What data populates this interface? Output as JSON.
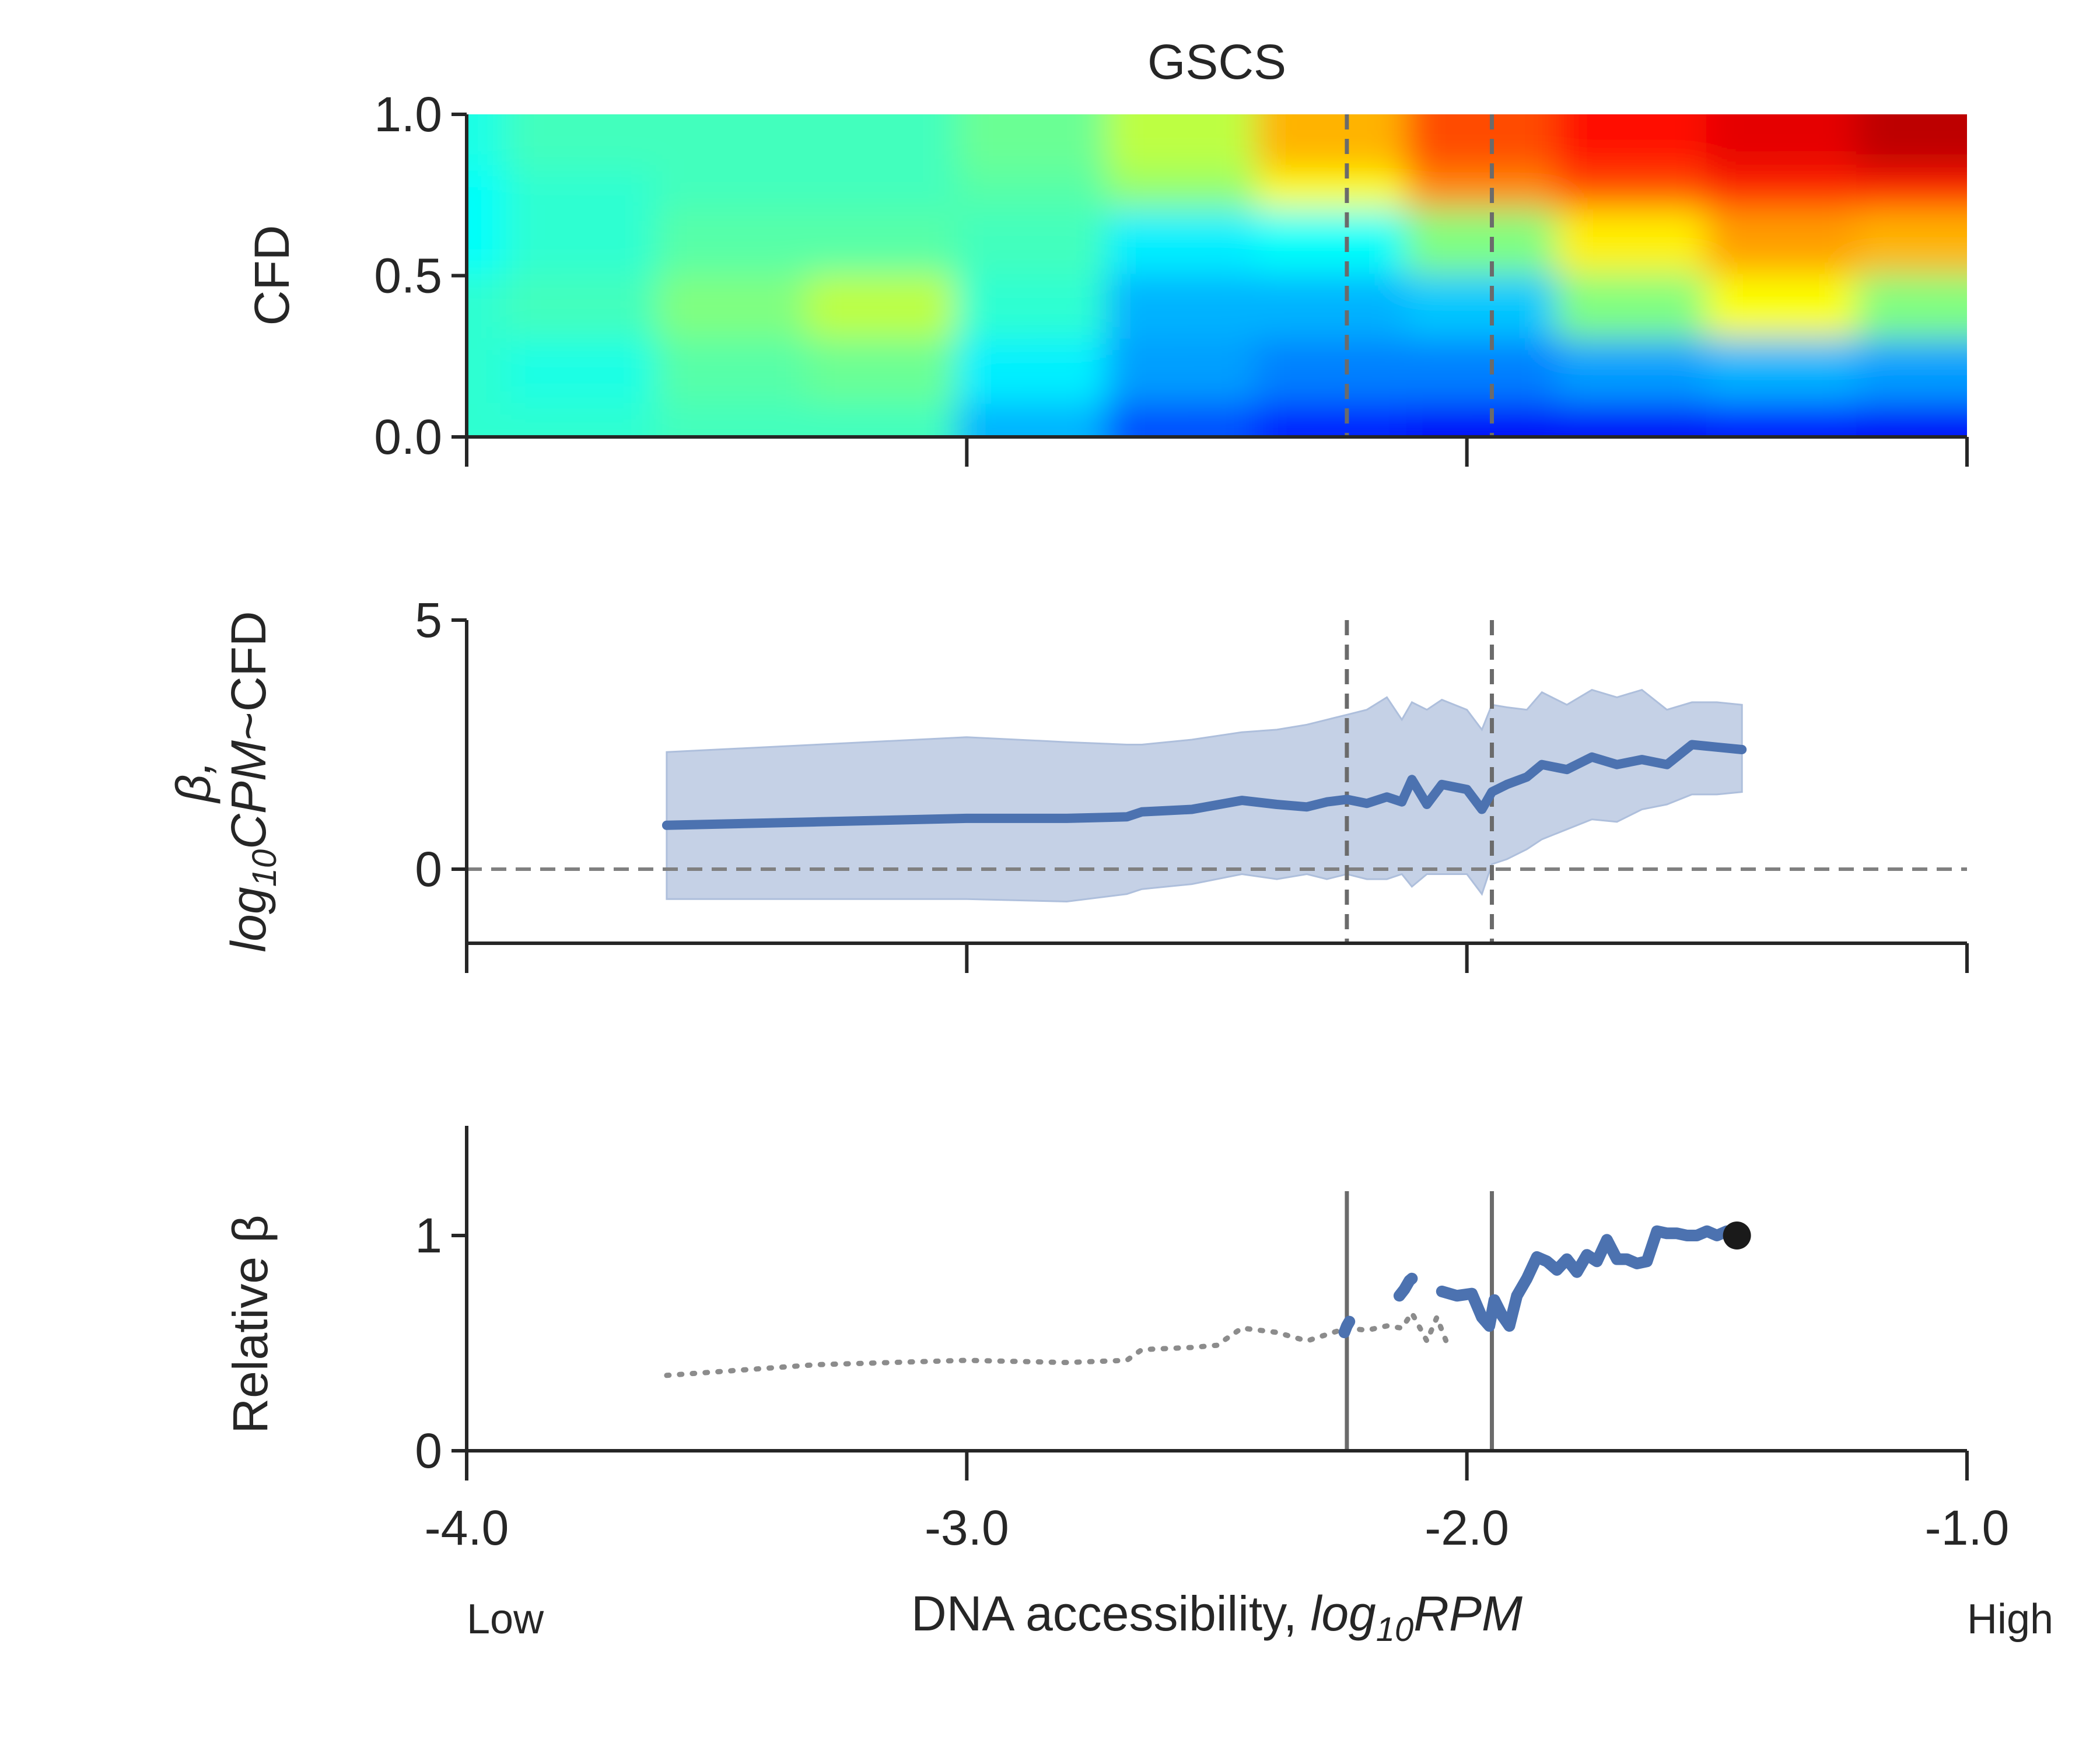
{
  "chart_data": [
    {
      "type": "heatmap",
      "title": "GSCS",
      "ylabel": "CFD",
      "xlim": [
        -4.0,
        -1.0
      ],
      "ylim": [
        0.0,
        1.0
      ],
      "yticks": [
        "0.0",
        "0.5",
        "1.0"
      ],
      "colormap": "jet",
      "vlines": [
        -2.24,
        -1.95
      ],
      "vline_color": "#6b6b6b",
      "vline_style": "dashed",
      "grid": false,
      "note_values": {
        "columns_x": [
          -4.0,
          -3.7,
          -3.4,
          -3.1,
          -2.8,
          -2.5,
          -2.2,
          -1.9,
          -1.6,
          -1.3,
          -1.0
        ],
        "rows_y": [
          0.05,
          0.25,
          0.45,
          0.65,
          0.85,
          0.97
        ],
        "z": [
          [
            0.42,
            0.42,
            0.44,
            0.44,
            0.3,
            0.2,
            0.15,
            0.12,
            0.12,
            0.14,
            0.12
          ],
          [
            0.42,
            0.4,
            0.46,
            0.48,
            0.36,
            0.28,
            0.25,
            0.25,
            0.28,
            0.3,
            0.28
          ],
          [
            0.42,
            0.44,
            0.5,
            0.56,
            0.42,
            0.3,
            0.3,
            0.32,
            0.5,
            0.62,
            0.5
          ],
          [
            0.38,
            0.42,
            0.46,
            0.46,
            0.44,
            0.36,
            0.38,
            0.5,
            0.64,
            0.72,
            0.7
          ],
          [
            0.38,
            0.42,
            0.44,
            0.44,
            0.46,
            0.52,
            0.62,
            0.74,
            0.8,
            0.84,
            0.85
          ],
          [
            0.4,
            0.44,
            0.44,
            0.44,
            0.48,
            0.56,
            0.7,
            0.8,
            0.86,
            0.9,
            0.94
          ]
        ]
      }
    },
    {
      "type": "line",
      "ylabel_line1": "β,",
      "ylabel_line2": "log10CPM~CFD",
      "xlim": [
        -4.0,
        -1.0
      ],
      "ylim": [
        -1.5,
        5
      ],
      "yticks": [
        "0",
        "5"
      ],
      "hline": 0,
      "vlines": [
        -2.24,
        -1.95
      ],
      "series": [
        {
          "color": "#4c72b0",
          "band_color": "#c5d1e6",
          "x": [
            -3.6,
            -3.3,
            -3.0,
            -2.8,
            -2.68,
            -2.65,
            -2.55,
            -2.45,
            -2.38,
            -2.32,
            -2.28,
            -2.24,
            -2.2,
            -2.16,
            -2.13,
            -2.11,
            -2.08,
            -2.05,
            -2.0,
            -1.97,
            -1.95,
            -1.92,
            -1.88,
            -1.85,
            -1.8,
            -1.75,
            -1.7,
            -1.65,
            -1.6,
            -1.55,
            -1.5,
            -1.45
          ],
          "y": [
            0.88,
            0.95,
            1.02,
            1.02,
            1.05,
            1.15,
            1.2,
            1.38,
            1.3,
            1.25,
            1.35,
            1.4,
            1.32,
            1.45,
            1.35,
            1.8,
            1.3,
            1.7,
            1.6,
            1.2,
            1.55,
            1.7,
            1.85,
            2.1,
            2.0,
            2.25,
            2.1,
            2.2,
            2.1,
            2.5,
            2.45,
            2.4
          ],
          "lower": [
            -0.6,
            -0.6,
            -0.6,
            -0.65,
            -0.5,
            -0.4,
            -0.3,
            -0.1,
            -0.2,
            -0.1,
            -0.2,
            -0.1,
            -0.2,
            -0.2,
            -0.1,
            -0.35,
            -0.1,
            -0.1,
            -0.1,
            -0.5,
            0.1,
            0.2,
            0.4,
            0.6,
            0.8,
            1.0,
            0.95,
            1.2,
            1.3,
            1.5,
            1.5,
            1.55
          ],
          "upper": [
            2.35,
            2.5,
            2.65,
            2.55,
            2.5,
            2.5,
            2.6,
            2.75,
            2.8,
            2.9,
            3.0,
            3.1,
            3.2,
            3.45,
            3.0,
            3.35,
            3.2,
            3.4,
            3.2,
            2.8,
            3.3,
            3.25,
            3.2,
            3.55,
            3.3,
            3.6,
            3.45,
            3.6,
            3.2,
            3.35,
            3.35,
            3.3
          ]
        }
      ]
    },
    {
      "type": "line",
      "ylabel": "Relative β",
      "xlabel_text": "DNA accessibility, ",
      "xlabel_math": "log10RPM",
      "xlim": [
        -4.0,
        -1.0
      ],
      "ylim": [
        0,
        1.5
      ],
      "yticks": [
        "0",
        "1"
      ],
      "xticks": [
        "-4.0",
        "-3.0",
        "-2.0",
        "-1.0"
      ],
      "xtick_values": [
        -4.0,
        -3.0,
        -2.0,
        -1.0
      ],
      "x_end_left": "Low",
      "x_end_right": "High",
      "vlines": [
        -2.24,
        -1.95
      ],
      "series": [
        {
          "style": "dotted",
          "color": "#8c8c8c",
          "x": [
            -3.6,
            -3.3,
            -3.0,
            -2.8,
            -2.68,
            -2.65,
            -2.55,
            -2.5,
            -2.45,
            -2.38,
            -2.32,
            -2.28,
            -2.24,
            -2.2,
            -2.16,
            -2.13,
            -2.11,
            -2.08,
            -2.06,
            -2.04
          ],
          "y": [
            0.35,
            0.4,
            0.42,
            0.41,
            0.42,
            0.47,
            0.48,
            0.49,
            0.57,
            0.55,
            0.51,
            0.54,
            0.57,
            0.56,
            0.58,
            0.57,
            0.64,
            0.51,
            0.62,
            0.5
          ]
        },
        {
          "style": "solid",
          "color": "#4c72b0",
          "segments": [
            {
              "x": [
                -2.245,
                -2.24,
                -2.235
              ],
              "y": [
                0.55,
                0.58,
                0.6
              ]
            },
            {
              "x": [
                -2.135,
                -2.125,
                -2.115,
                -2.11
              ],
              "y": [
                0.72,
                0.75,
                0.79,
                0.8
              ]
            },
            {
              "x": [
                -2.05,
                -2.02,
                -1.99,
                -1.97,
                -1.955,
                -1.945,
                -1.93,
                -1.915,
                -1.9,
                -1.88,
                -1.86,
                -1.84,
                -1.82,
                -1.8,
                -1.78,
                -1.76,
                -1.74,
                -1.72,
                -1.7,
                -1.68,
                -1.66,
                -1.64,
                -1.62,
                -1.6,
                -1.58,
                -1.56,
                -1.54,
                -1.52,
                -1.5,
                -1.48,
                -1.46
              ],
              "y": [
                0.74,
                0.72,
                0.73,
                0.62,
                0.58,
                0.7,
                0.63,
                0.58,
                0.72,
                0.8,
                0.9,
                0.88,
                0.84,
                0.89,
                0.83,
                0.91,
                0.88,
                0.98,
                0.89,
                0.89,
                0.87,
                0.88,
                1.02,
                1.01,
                1.01,
                1.0,
                1.0,
                1.02,
                1.0,
                1.02,
                1.0
              ]
            }
          ]
        }
      ],
      "endpoint": {
        "x": -1.46,
        "y": 1.0,
        "color": "#1a1a1a"
      }
    }
  ]
}
